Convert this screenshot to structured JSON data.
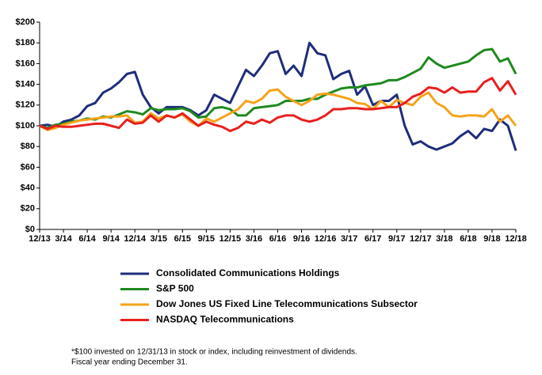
{
  "chart_data": {
    "type": "line",
    "categories": [
      "12/13",
      null,
      null,
      "3/14",
      null,
      null,
      "6/14",
      null,
      null,
      "9/14",
      null,
      null,
      "12/14",
      null,
      null,
      "3/15",
      null,
      null,
      "6/15",
      null,
      null,
      "9/15",
      null,
      null,
      "12/15",
      null,
      null,
      "3/16",
      null,
      null,
      "6/16",
      null,
      null,
      "9/16",
      null,
      null,
      "12/16",
      null,
      null,
      "3/17",
      null,
      null,
      "6/17",
      null,
      null,
      "9/17",
      null,
      null,
      "12/17",
      null,
      null,
      "3/18",
      null,
      null,
      "6/18",
      null,
      null,
      "9/18",
      null,
      null,
      "12/18"
    ],
    "series": [
      {
        "name": "Consolidated Communications Holdings",
        "color": "#1f2d7b",
        "values": [
          100,
          101,
          99,
          104,
          106,
          110,
          119,
          122,
          132,
          136,
          142,
          150,
          152,
          130,
          118,
          112,
          118,
          118,
          118,
          115,
          110,
          115,
          130,
          126,
          122,
          138,
          154,
          148,
          158,
          170,
          172,
          150,
          158,
          148,
          180,
          170,
          168,
          145,
          150,
          153,
          130,
          138,
          120,
          124,
          124,
          130,
          100,
          82,
          85,
          80,
          77,
          80,
          83,
          90,
          95,
          88,
          97,
          95,
          106,
          100,
          76
        ]
      },
      {
        "name": "S&P 500",
        "color": "#1e8a1e",
        "values": [
          100,
          98,
          101,
          102,
          104,
          105,
          107,
          106,
          109,
          108,
          111,
          114,
          113,
          111,
          117,
          115,
          116,
          116,
          117,
          114,
          108,
          109,
          117,
          118,
          116,
          110,
          110,
          117,
          118,
          119,
          120,
          124,
          124,
          124,
          126,
          126,
          130,
          133,
          136,
          137,
          137,
          139,
          140,
          141,
          144,
          144,
          147,
          151,
          155,
          166,
          160,
          156,
          158,
          160,
          162,
          168,
          173,
          174,
          162,
          165,
          150
        ]
      },
      {
        "name": "Dow Jones US Fixed Line Telecommunications Subsector",
        "color": "#f5a31a",
        "values": [
          100,
          96,
          98,
          101,
          103,
          105,
          106,
          107,
          108,
          109,
          109,
          110,
          103,
          104,
          112,
          107,
          110,
          108,
          111,
          104,
          100,
          107,
          104,
          108,
          112,
          116,
          124,
          122,
          126,
          134,
          135,
          128,
          124,
          120,
          124,
          130,
          131,
          130,
          128,
          126,
          122,
          121,
          116,
          124,
          118,
          125,
          122,
          120,
          128,
          132,
          122,
          118,
          110,
          109,
          110,
          110,
          109,
          116,
          104,
          110,
          100
        ]
      },
      {
        "name": "NASDAQ Telecommunications",
        "color": "#e8201e",
        "values": [
          100,
          97,
          100,
          99,
          99,
          100,
          101,
          102,
          102,
          100,
          98,
          106,
          102,
          103,
          110,
          104,
          110,
          108,
          112,
          106,
          100,
          104,
          101,
          99,
          95,
          98,
          104,
          102,
          106,
          103,
          108,
          110,
          110,
          106,
          104,
          106,
          110,
          116,
          116,
          117,
          117,
          116,
          116,
          117,
          118,
          118,
          122,
          128,
          131,
          137,
          136,
          132,
          137,
          132,
          133,
          133,
          142,
          146,
          134,
          143,
          130
        ]
      }
    ],
    "ylim": [
      0,
      200
    ],
    "yticks": [
      {
        "value": 0,
        "label": "$0"
      },
      {
        "value": 20,
        "label": "$20"
      },
      {
        "value": 40,
        "label": "$40"
      },
      {
        "value": 60,
        "label": "$60"
      },
      {
        "value": 80,
        "label": "$80"
      },
      {
        "value": 100,
        "label": "$100"
      },
      {
        "value": 120,
        "label": "$120"
      },
      {
        "value": 140,
        "label": "$140"
      },
      {
        "value": 160,
        "label": "$160"
      },
      {
        "value": 180,
        "label": "$180"
      },
      {
        "value": 200,
        "label": "$200"
      }
    ],
    "footnotes": [
      "*$100 invested on 12/31/13 in stock or index, including reinvestment of dividends.",
      "Fiscal year ending December 31."
    ]
  }
}
